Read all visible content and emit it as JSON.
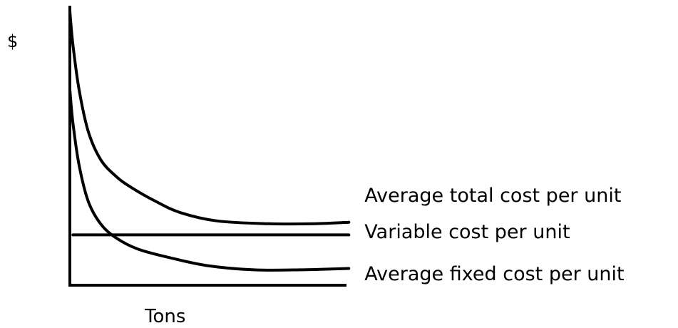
{
  "chart_data": {
    "type": "line",
    "title": "",
    "xlabel": "Tons",
    "ylabel": "$",
    "grid": false,
    "legend": "right",
    "color": "#000000",
    "series": [
      {
        "name": "Average total cost per unit",
        "points": [
          [
            0.0,
            0.98
          ],
          [
            0.01,
            0.86
          ],
          [
            0.03,
            0.7
          ],
          [
            0.06,
            0.55
          ],
          [
            0.1,
            0.45
          ],
          [
            0.15,
            0.39
          ],
          [
            0.2,
            0.35
          ],
          [
            0.28,
            0.3
          ],
          [
            0.36,
            0.26
          ],
          [
            0.48,
            0.23
          ],
          [
            0.65,
            0.22
          ],
          [
            0.8,
            0.22
          ],
          [
            0.91,
            0.225
          ]
        ]
      },
      {
        "name": "Variable cost per unit",
        "points": [
          [
            0.01,
            0.18
          ],
          [
            0.91,
            0.18
          ]
        ]
      },
      {
        "name": "Average fixed cost per unit",
        "points": [
          [
            0.0,
            0.7
          ],
          [
            0.01,
            0.58
          ],
          [
            0.03,
            0.43
          ],
          [
            0.06,
            0.3
          ],
          [
            0.1,
            0.22
          ],
          [
            0.15,
            0.17
          ],
          [
            0.22,
            0.13
          ],
          [
            0.32,
            0.1
          ],
          [
            0.45,
            0.07
          ],
          [
            0.6,
            0.055
          ],
          [
            0.75,
            0.055
          ],
          [
            0.91,
            0.06
          ]
        ]
      }
    ]
  }
}
